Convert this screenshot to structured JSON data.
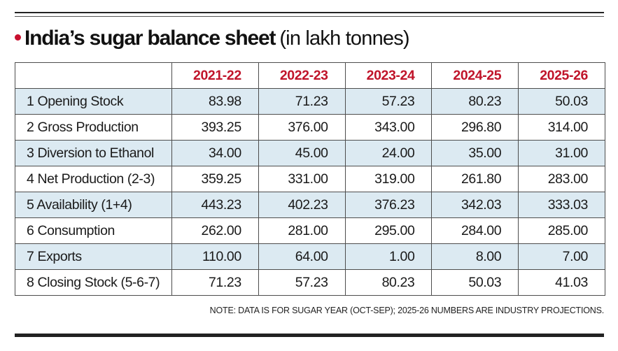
{
  "chart_data": {
    "type": "table",
    "title": "India’s sugar balance sheet",
    "subtitle": "(in lakh tonnes)",
    "columns": [
      "2021-22",
      "2022-23",
      "2023-24",
      "2024-25",
      "2025-26"
    ],
    "rows": [
      {
        "label": "1 Opening Stock",
        "values": [
          "83.98",
          "71.23",
          "57.23",
          "80.23",
          "50.03"
        ],
        "shaded": true
      },
      {
        "label": "2 Gross Production",
        "values": [
          "393.25",
          "376.00",
          "343.00",
          "296.80",
          "314.00"
        ],
        "shaded": false
      },
      {
        "label": "3 Diversion to Ethanol",
        "values": [
          "34.00",
          "45.00",
          "24.00",
          "35.00",
          "31.00"
        ],
        "shaded": true
      },
      {
        "label": "4 Net Production (2-3)",
        "values": [
          "359.25",
          "331.00",
          "319.00",
          "261.80",
          "283.00"
        ],
        "shaded": false
      },
      {
        "label": "5 Availability (1+4)",
        "values": [
          "443.23",
          "402.23",
          "376.23",
          "342.03",
          "333.03"
        ],
        "shaded": true
      },
      {
        "label": "6 Consumption",
        "values": [
          "262.00",
          "281.00",
          "295.00",
          "284.00",
          "285.00"
        ],
        "shaded": false
      },
      {
        "label": "7 Exports",
        "values": [
          "110.00",
          "64.00",
          "1.00",
          "8.00",
          "7.00"
        ],
        "shaded": true
      },
      {
        "label": "8 Closing Stock (5-6-7)",
        "values": [
          "71.23",
          "57.23",
          "80.23",
          "50.03",
          "41.03"
        ],
        "shaded": false
      }
    ],
    "note": "NOTE: DATA IS FOR SUGAR YEAR (OCT-SEP); 2025-26 NUMBERS ARE INDUSTRY PROJECTIONS.",
    "colors": {
      "header_text": "#c0142a",
      "shade": "#dceaf2",
      "bullet": "#c8102e"
    }
  }
}
